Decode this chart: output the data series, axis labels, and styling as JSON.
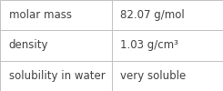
{
  "rows": [
    {
      "label": "molar mass",
      "value": "82.07 g/mol"
    },
    {
      "label": "density",
      "value": "1.03 g/cm³"
    },
    {
      "label": "solubility in water",
      "value": "very soluble"
    }
  ],
  "background_color": "#ffffff",
  "border_color": "#c0c0c0",
  "text_color": "#404040",
  "font_size": 8.5,
  "col_split": 0.5
}
